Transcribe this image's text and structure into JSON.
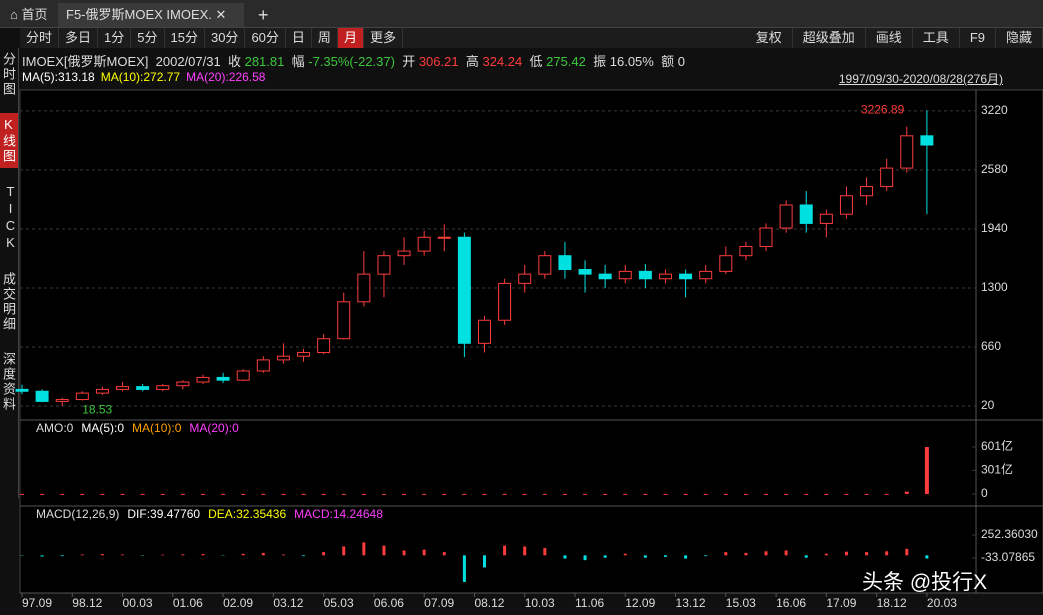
{
  "tabs": {
    "home": "首页",
    "active": "F5-俄罗斯MOEX IMOEX.",
    "add": "+"
  },
  "toolbar": {
    "left": [
      "分时",
      "多日",
      "1分",
      "5分",
      "15分",
      "30分",
      "60分",
      "日",
      "周",
      "月",
      "更多"
    ],
    "active": "月",
    "right": [
      "复权",
      "超级叠加",
      "画线",
      "工具",
      "F9",
      "隐藏"
    ]
  },
  "sidebar": [
    "分时图",
    "K线图",
    "TICK",
    "成交明细",
    "深度资料"
  ],
  "quote": {
    "name": "IMOEX[俄罗斯MOEX]",
    "date": "2002/07/31",
    "close_label": "收",
    "close": 281.81,
    "change_label": "幅",
    "change": "-7.35%(-22.37)",
    "open_label": "开",
    "open": 306.21,
    "high_label": "高",
    "high": 324.24,
    "low_label": "低",
    "low": 275.42,
    "amp_label": "振",
    "amplitude": "16.05%",
    "amount_label": "额",
    "amount": 0
  },
  "ma_legend": [
    {
      "text": "MA(5):313.18",
      "color": "#ffffff"
    },
    {
      "text": "MA(10):272.77",
      "color": "#ffff00"
    },
    {
      "text": "MA(20):226.58",
      "color": "#ff40ff"
    }
  ],
  "range": "1997/09/30-2020/08/28(276月)",
  "watermark": "头条 @投行X",
  "chart_data": [
    {
      "type": "candlestick",
      "up_color": "#ff3c3c",
      "down_color": "#00e0e0",
      "x": [
        0,
        6,
        12,
        18,
        24,
        30,
        36,
        42,
        48,
        54,
        60,
        66,
        72,
        78,
        84,
        90,
        96,
        102,
        108,
        114,
        120,
        126,
        132,
        138,
        144,
        150,
        156,
        162,
        168,
        174,
        180,
        186,
        192,
        198,
        204,
        210,
        216,
        222,
        228,
        234,
        240,
        246,
        252,
        258,
        264,
        270
      ],
      "open": [
        200,
        180,
        70,
        90,
        160,
        200,
        230,
        200,
        240,
        280,
        330,
        300,
        400,
        520,
        560,
        600,
        750,
        1150,
        1450,
        1650,
        1700,
        1850,
        1850,
        700,
        950,
        1350,
        1450,
        1650,
        1500,
        1450,
        1400,
        1480,
        1400,
        1450,
        1400,
        1480,
        1650,
        1750,
        1950,
        2200,
        2000,
        2100,
        2300,
        2400,
        2600,
        2950
      ],
      "high": [
        250,
        200,
        110,
        180,
        230,
        280,
        260,
        260,
        300,
        360,
        380,
        420,
        560,
        700,
        640,
        800,
        1250,
        1700,
        1700,
        1850,
        1920,
        1990,
        1900,
        1000,
        1400,
        1550,
        1700,
        1800,
        1600,
        1550,
        1550,
        1560,
        1500,
        1500,
        1550,
        1750,
        1800,
        2000,
        2250,
        2350,
        2150,
        2400,
        2500,
        2700,
        3050,
        3226.89
      ],
      "low": [
        150,
        60,
        18.53,
        80,
        140,
        180,
        180,
        180,
        200,
        260,
        270,
        290,
        380,
        480,
        500,
        580,
        740,
        1100,
        1200,
        1550,
        1650,
        1700,
        550,
        600,
        900,
        1250,
        1400,
        1400,
        1250,
        1300,
        1350,
        1300,
        1350,
        1200,
        1350,
        1450,
        1600,
        1700,
        1900,
        1900,
        1850,
        2050,
        2200,
        2350,
        2550,
        2100
      ],
      "close": [
        180,
        70,
        90,
        160,
        200,
        230,
        200,
        240,
        280,
        330,
        300,
        400,
        520,
        560,
        600,
        750,
        1150,
        1450,
        1650,
        1700,
        1850,
        1850,
        700,
        950,
        1350,
        1450,
        1650,
        1500,
        1450,
        1400,
        1480,
        1400,
        1450,
        1400,
        1480,
        1650,
        1750,
        1950,
        2200,
        2000,
        2100,
        2300,
        2400,
        2600,
        2950,
        2850
      ],
      "xlim": [
        0,
        276
      ],
      "ylim": [
        -110,
        3360
      ],
      "yticks": [
        20,
        660,
        1300,
        1940,
        2580,
        3220
      ],
      "grid": true,
      "xticks": [
        {
          "value": 0,
          "label": "97.09"
        },
        {
          "value": 15,
          "label": "98.12"
        },
        {
          "value": 30,
          "label": "00.03"
        },
        {
          "value": 45,
          "label": "01.06"
        },
        {
          "value": 60,
          "label": "02.09"
        },
        {
          "value": 75,
          "label": "03.12"
        },
        {
          "value": 90,
          "label": "05.03"
        },
        {
          "value": 105,
          "label": "06.06"
        },
        {
          "value": 120,
          "label": "07.09"
        },
        {
          "value": 135,
          "label": "08.12"
        },
        {
          "value": 150,
          "label": "10.03"
        },
        {
          "value": 165,
          "label": "11.06"
        },
        {
          "value": 180,
          "label": "12.09"
        },
        {
          "value": 195,
          "label": "13.12"
        },
        {
          "value": 210,
          "label": "15.03"
        },
        {
          "value": 225,
          "label": "16.06"
        },
        {
          "value": 240,
          "label": "17.09"
        },
        {
          "value": 255,
          "label": "18.12"
        },
        {
          "value": 270,
          "label": "20.03"
        }
      ],
      "annotations": [
        {
          "x": 270,
          "value": 3226.89,
          "color": "#ff3c3c"
        },
        {
          "x": 12,
          "value": 18.53,
          "color": "#3cc83c"
        }
      ]
    },
    {
      "type": "bar",
      "title": "AMO:0",
      "legend": [
        {
          "text": "MA(5):0",
          "color": "#ffffff"
        },
        {
          "text": "MA(10):0",
          "color": "#ffa000"
        },
        {
          "text": "MA(20):0",
          "color": "#ff40ff"
        }
      ],
      "color": "#ff3c3c",
      "x": [
        0,
        6,
        12,
        18,
        24,
        30,
        36,
        42,
        48,
        54,
        60,
        66,
        72,
        78,
        84,
        90,
        96,
        102,
        108,
        114,
        120,
        126,
        132,
        138,
        144,
        150,
        156,
        162,
        168,
        174,
        180,
        186,
        192,
        198,
        204,
        210,
        216,
        222,
        228,
        234,
        240,
        246,
        252,
        258,
        264,
        270
      ],
      "values": [
        1,
        1,
        1,
        1,
        1,
        1,
        1,
        1,
        1,
        1,
        1,
        1,
        1,
        1,
        1,
        1,
        1,
        1,
        1,
        1,
        1,
        1,
        1,
        1,
        1,
        1,
        1,
        1,
        1,
        1,
        1,
        1,
        1,
        1,
        1,
        1,
        1,
        1,
        1,
        1,
        1,
        1,
        1,
        1,
        30,
        600
      ],
      "xlim": [
        0,
        276
      ],
      "ylim": [
        -77,
        690
      ],
      "yticks": [
        0,
        {
          "value": 301,
          "label": "301亿"
        },
        {
          "value": 601,
          "label": "601亿"
        }
      ]
    },
    {
      "type": "macd",
      "title": "MACD(12,26,9)",
      "legend": [
        {
          "text": "DIF:39.47760",
          "color": "#ffffff"
        },
        {
          "text": "DEA:32.35436",
          "color": "#ffff00"
        },
        {
          "text": "MACD:14.24648",
          "color": "#ff40ff"
        }
      ],
      "up_color": "#ff3c3c",
      "down_color": "#00e0e0",
      "x": [
        0,
        6,
        12,
        18,
        24,
        30,
        36,
        42,
        48,
        54,
        60,
        66,
        72,
        78,
        84,
        90,
        96,
        102,
        108,
        114,
        120,
        126,
        132,
        138,
        144,
        150,
        156,
        162,
        168,
        174,
        180,
        186,
        192,
        198,
        204,
        210,
        216,
        222,
        228,
        234,
        240,
        246,
        252,
        258,
        264,
        270
      ],
      "values": [
        -5,
        -15,
        -10,
        10,
        15,
        10,
        -5,
        8,
        12,
        15,
        -5,
        18,
        30,
        10,
        -10,
        40,
        110,
        160,
        120,
        60,
        70,
        40,
        -330,
        -150,
        120,
        110,
        90,
        -40,
        -60,
        -30,
        20,
        -30,
        -20,
        -40,
        -10,
        40,
        30,
        50,
        60,
        -30,
        20,
        45,
        40,
        50,
        80,
        -40
      ],
      "xlim": [
        0,
        276
      ],
      "ylim": [
        -455,
        376
      ],
      "yticks": [
        {
          "value": 252.3603,
          "label": "252.36030"
        },
        -33.07865
      ]
    }
  ]
}
